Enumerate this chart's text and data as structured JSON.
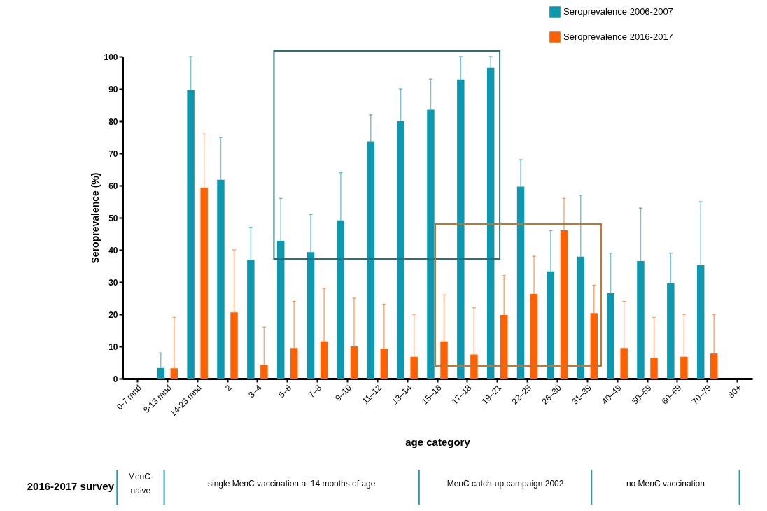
{
  "chart_data": {
    "type": "bar",
    "xlabel": "age category",
    "ylabel": "Seroprevalence (%)",
    "categories": [
      "0-7 mnd",
      "8-13 mnd",
      "14-23 mnd",
      "2",
      "3–4",
      "5–6",
      "7–8",
      "9–10",
      "11–12",
      "13–14",
      "15–16",
      "17–18",
      "19–21",
      "22–25",
      "26–30",
      "31–39",
      "40–49",
      "50–59",
      "60–69",
      "70–79",
      "80+"
    ],
    "series": [
      {
        "name": "Seroprevalence 2006-2007",
        "color": "#0e98b0",
        "values": [
          null,
          3.3,
          89.7,
          61.8,
          36.8,
          42.8,
          39.3,
          49.2,
          73.6,
          80,
          83.6,
          92.9,
          96.6,
          59.7,
          33.3,
          37.9,
          26.5,
          36.5,
          29.6,
          35.2,
          null
        ],
        "errors": [
          null,
          [
            3.3,
            8
          ],
          [
            89.7,
            100
          ],
          [
            61.8,
            75
          ],
          [
            36.8,
            47
          ],
          [
            42.8,
            56
          ],
          [
            39.3,
            51
          ],
          [
            49.2,
            64
          ],
          [
            73.6,
            82
          ],
          [
            80,
            90
          ],
          [
            83.6,
            93
          ],
          [
            92.9,
            100
          ],
          [
            96.6,
            100
          ],
          [
            59.7,
            68
          ],
          [
            33.3,
            46
          ],
          [
            37.9,
            57
          ],
          [
            26.5,
            39
          ],
          [
            36.5,
            53
          ],
          [
            29.6,
            39
          ],
          [
            35.2,
            55
          ],
          null
        ]
      },
      {
        "name": "Seroprevalence 2016-2017",
        "color": "#ff6000",
        "values": [
          null,
          3.2,
          59.3,
          20.6,
          4.3,
          9.5,
          11.6,
          10,
          9.3,
          6.8,
          11.6,
          7.5,
          19.8,
          26.3,
          46.1,
          20.4,
          9.5,
          6.5,
          6.8,
          7.8,
          null
        ],
        "errors": [
          null,
          [
            3.2,
            19
          ],
          [
            59.3,
            76
          ],
          [
            20.6,
            40
          ],
          [
            4.3,
            16
          ],
          [
            9.5,
            24
          ],
          [
            11.6,
            28
          ],
          [
            10,
            25
          ],
          [
            9.3,
            23
          ],
          [
            6.8,
            20
          ],
          [
            11.6,
            26
          ],
          [
            7.5,
            22
          ],
          [
            19.8,
            32
          ],
          [
            26.3,
            38
          ],
          [
            46.1,
            56
          ],
          [
            20.4,
            29
          ],
          [
            9.5,
            24
          ],
          [
            6.5,
            19
          ],
          [
            6.8,
            20
          ],
          [
            7.8,
            20
          ],
          null
        ]
      }
    ],
    "ylim": [
      0,
      100
    ],
    "yticks": [
      0,
      10,
      20,
      30,
      40,
      50,
      60,
      70,
      80,
      90,
      100
    ],
    "grid": false,
    "legend": "top right",
    "annotations": [
      "2016-2017 survey",
      "MenC-\nnaive",
      "single MenC vaccination at 14 months of age",
      "MenC catch-up campaign 2002",
      "no MenC vaccination"
    ]
  }
}
